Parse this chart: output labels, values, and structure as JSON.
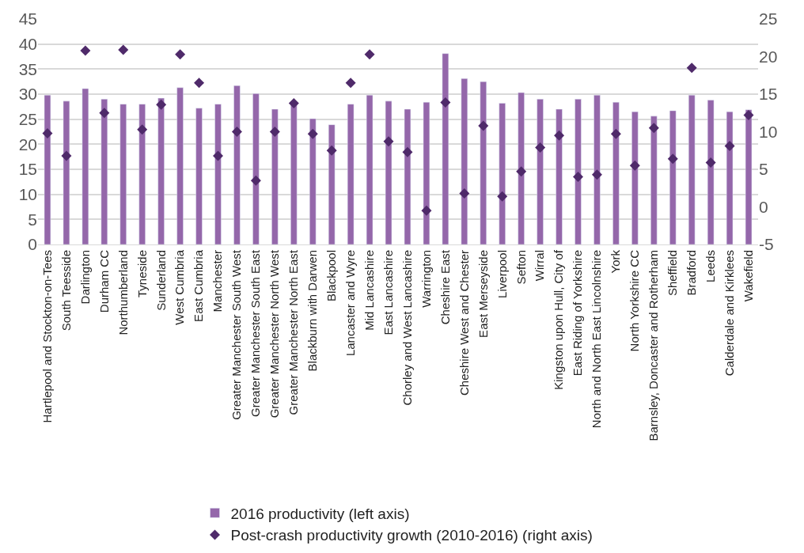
{
  "chart_data": {
    "type": "bar",
    "categories": [
      "Hartlepool and Stockton-on-Tees",
      "South Teesside",
      "Darlington",
      "Durham CC",
      "Northumberland",
      "Tyneside",
      "Sunderland",
      "West Cumbria",
      "East Cumbria",
      "Manchester",
      "Greater Manchester South West",
      "Greater Manchester South East",
      "Greater Manchester North West",
      "Greater Manchester North East",
      "Blackburn with Darwen",
      "Blackpool",
      "Lancaster and Wyre",
      "Mid Lancashire",
      "East Lancashire",
      "Chorley and West Lancashire",
      "Warrington",
      "Cheshire East",
      "Cheshire West and Chester",
      "East Merseyside",
      "Liverpool",
      "Sefton",
      "Wirral",
      "Kingston upon Hull, City of",
      "East Riding of Yorkshire",
      "North and North East Lincolnshire",
      "York",
      "North Yorkshire CC",
      "Barnsley, Doncaster and Rotherham",
      "Sheffield",
      "Bradford",
      "Leeds",
      "Calderdale and Kirklees",
      "Wakefield"
    ],
    "series": [
      {
        "name": "2016 productivity (left axis)",
        "color": "#9467aa",
        "values": [
          29.8,
          28.6,
          31.1,
          29.0,
          28.0,
          28.0,
          29.2,
          31.3,
          27.2,
          28.0,
          31.7,
          30.1,
          27.0,
          28.1,
          25.1,
          23.9,
          28.0,
          29.8,
          28.6,
          27.0,
          28.4,
          38.1,
          33.1,
          32.5,
          28.2,
          30.3,
          29.0,
          27.0,
          29.0,
          29.8,
          28.4,
          26.5,
          25.6,
          26.7,
          29.8,
          28.8,
          26.5,
          26.9
        ]
      },
      {
        "name": "Post-crash productivity growth (2010-2016) (right axis)",
        "type": "scatter",
        "axis": "y2",
        "marker": "diamond",
        "color": "#4f2a6a",
        "values": [
          9.8,
          6.8,
          20.8,
          12.5,
          20.9,
          10.3,
          13.6,
          20.3,
          16.5,
          6.8,
          10.0,
          3.5,
          10.0,
          13.8,
          9.7,
          7.5,
          16.5,
          20.3,
          8.7,
          7.3,
          -0.5,
          13.9,
          1.8,
          10.8,
          1.4,
          4.7,
          7.9,
          9.5,
          4.0,
          4.3,
          9.7,
          5.5,
          10.5,
          6.4,
          18.5,
          5.9,
          8.1,
          12.2
        ]
      }
    ],
    "ylim": [
      0,
      45
    ],
    "yticks": [
      0,
      5,
      10,
      15,
      20,
      25,
      30,
      35,
      40,
      45
    ],
    "y2lim": [
      -5,
      25
    ],
    "y2ticks": [
      -5,
      0,
      5,
      10,
      15,
      20,
      25
    ],
    "grid": "y",
    "legend": "bottom"
  }
}
